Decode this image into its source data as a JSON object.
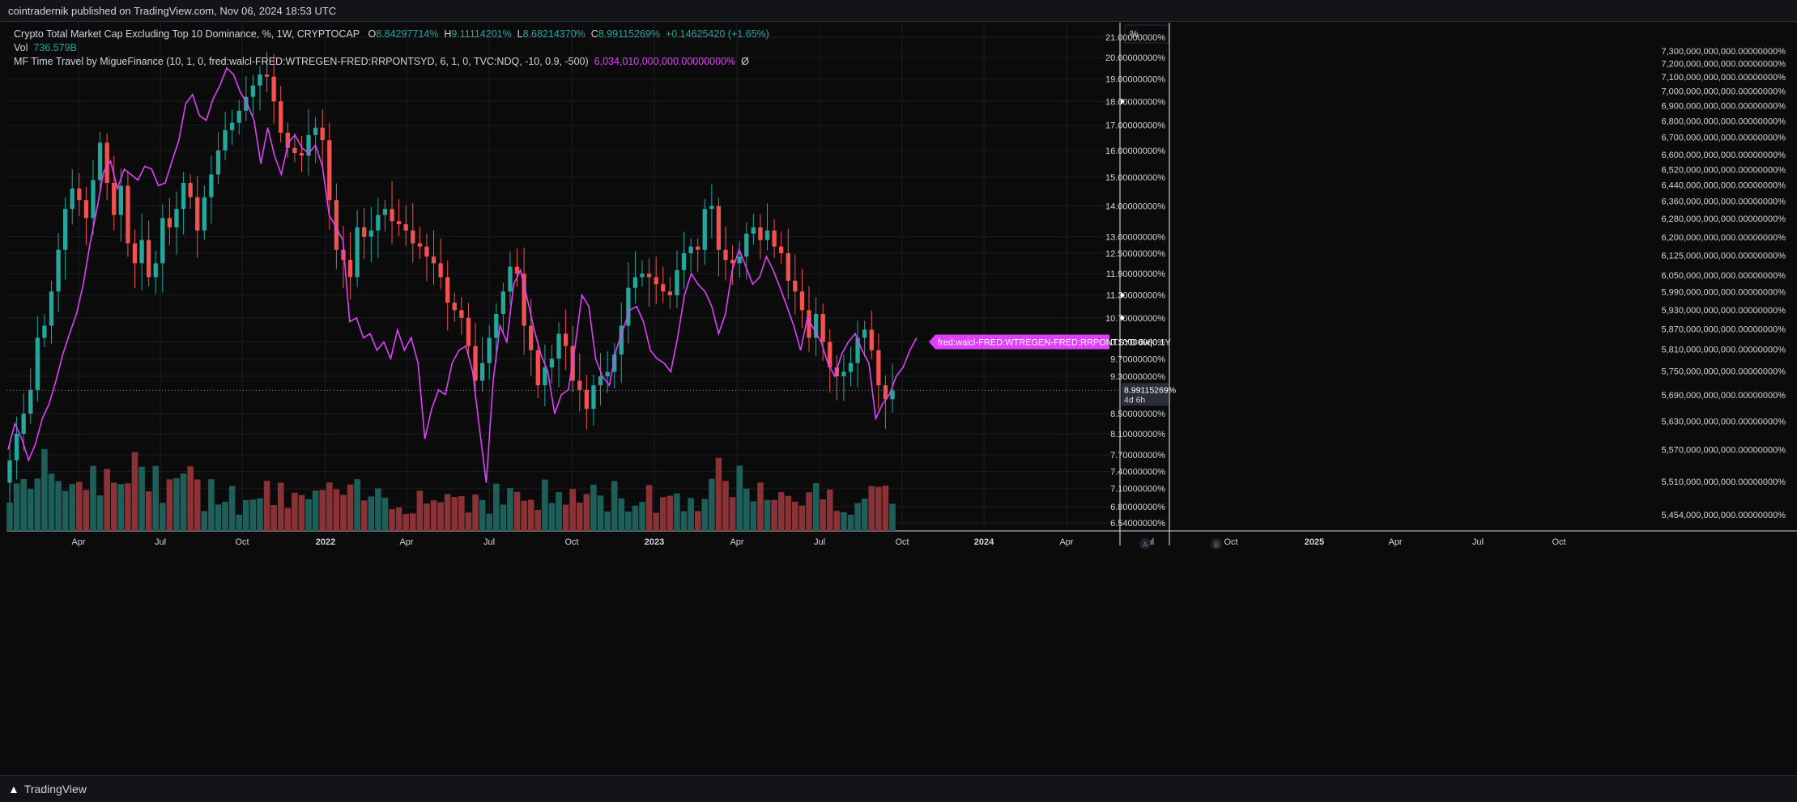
{
  "header": {
    "publisher": "cointradernik published on TradingView.com, Nov 06, 2024 18:53 UTC"
  },
  "legend": {
    "title": "Crypto Total Market Cap Excluding Top 10 Dominance, %, 1W, CRYPTOCAP",
    "o_label": "O",
    "o_value": "8.84297714%",
    "h_label": "H",
    "h_value": "9.11114201%",
    "l_label": "L",
    "l_value": "8.68214370%",
    "c_label": "C",
    "c_value": "8.99115269%",
    "change": "+0.14625420 (+1.65%)",
    "vol_label": "Vol",
    "vol_value": "736.579B",
    "indicator_name": "MF Time Travel by MigueFinance (10, 1, 0, fred:walcl-FRED:WTREGEN-FRED:RRPONTSYD, 6, 1, 0, TVC:NDQ, -10, 0.9, -500)",
    "indicator_value": "6,034,010,000,000.00000000%",
    "indicator_extra": "Ø"
  },
  "footer": {
    "brand": "TradingView"
  },
  "scale_a_unit": "%",
  "scale_a_button": "A",
  "scale_b_button": "B",
  "colors": {
    "up": "#26a69a",
    "down": "#ef5350",
    "indicator": "#e040fb",
    "vol_up": "#1f5f5a",
    "vol_down": "#8a3236",
    "background": "#0b0b0c",
    "grid": "#1a1c22"
  },
  "chart_data": {
    "type": "candlestick",
    "title": "Crypto Total Market Cap Excluding Top 10 Dominance, %, 1W, CRYPTOCAP",
    "interval": "1W",
    "y_scale": "log",
    "axis_a": {
      "unit": "%",
      "ticks": [
        "21.00000000%",
        "20.00000000%",
        "19.00000000%",
        "18.00000000%",
        "17.00000000%",
        "16.00000000%",
        "15.00000000%",
        "14.00000000%",
        "13.00000000%",
        "12.50000000%",
        "11.90000000%",
        "11.30000000%",
        "10.70000000%",
        "10.10000000%",
        "9.70000000%",
        "9.30000000%",
        "8.50000000%",
        "8.10000000%",
        "7.70000000%",
        "7.40000000%",
        "7.10000000%",
        "6.80000000%",
        "6.54000000%"
      ],
      "last_price_label": "8.99115269%",
      "countdown_label": "4d 6h"
    },
    "axis_b": {
      "ticks": [
        "7,300,000,000,000.00000000%",
        "7,200,000,000,000.00000000%",
        "7,100,000,000,000.00000000%",
        "7,000,000,000,000.00000000%",
        "6,900,000,000,000.00000000%",
        "6,800,000,000,000.00000000%",
        "6,700,000,000,000.00000000%",
        "6,600,000,000,000.00000000%",
        "6,520,000,000,000.00000000%",
        "6,440,000,000,000.00000000%",
        "6,360,000,000,000.00000000%",
        "6,280,000,000,000.00000000%",
        "6,200,000,000,000.00000000%",
        "6,125,000,000,000.00000000%",
        "6,050,000,000,000.00000000%",
        "5,990,000,000,000.00000000%",
        "5,930,000,000,000.00000000%",
        "5,870,000,000,000.00000000%",
        "5,810,000,000,000.00000000%",
        "5,750,000,000,000.00000000%",
        "5,690,000,000,000.00000000%",
        "5,630,000,000,000.00000000%",
        "5,570,000,000,000.00000000%",
        "5,510,000,000,000.00000000%",
        "5,454,000,000,000.00000000%"
      ]
    },
    "x_labels": [
      "Apr",
      "Jul",
      "Oct",
      "2022",
      "Apr",
      "Jul",
      "Oct",
      "2023",
      "Apr",
      "Jul",
      "Oct",
      "2024",
      "Apr",
      "Jul",
      "Oct",
      "2025",
      "Apr",
      "Jul",
      "Oct"
    ],
    "series": [
      {
        "name": "Crypto Total Market Cap Excluding Top 10 Dominance",
        "kind": "candlestick",
        "closes": [
          7.6,
          8.1,
          8.5,
          9.0,
          10.2,
          10.5,
          11.4,
          12.6,
          13.9,
          14.6,
          14.2,
          13.6,
          14.9,
          16.3,
          14.8,
          13.7,
          14.7,
          12.8,
          12.2,
          12.9,
          11.8,
          12.2,
          13.6,
          13.3,
          13.9,
          14.8,
          14.3,
          13.2,
          14.3,
          15.1,
          16.0,
          16.8,
          17.1,
          17.6,
          18.2,
          18.7,
          19.2,
          19.1,
          18.0,
          16.7,
          16.1,
          15.9,
          15.8,
          16.6,
          16.9,
          16.4,
          14.2,
          12.6,
          12.3,
          11.8,
          13.3,
          13.0,
          13.2,
          13.7,
          13.9,
          13.5,
          13.4,
          13.2,
          12.8,
          12.7,
          12.4,
          12.2,
          11.8,
          11.1,
          10.9,
          10.7,
          10.0,
          9.2,
          9.6,
          10.2,
          10.8,
          11.4,
          12.1,
          11.9,
          10.5,
          9.9,
          9.1,
          9.5,
          9.7,
          10.3,
          10.0,
          9.2,
          9.0,
          8.6,
          9.1,
          9.3,
          9.4,
          9.8,
          10.5,
          11.5,
          11.8,
          11.9,
          11.8,
          11.6,
          11.4,
          11.3,
          12.0,
          12.5,
          12.7,
          12.6,
          13.9,
          14.0,
          12.6,
          12.3,
          12.2,
          12.4,
          13.1,
          13.3,
          12.9,
          13.2,
          12.7,
          12.5,
          11.7,
          11.4,
          10.9,
          10.2,
          10.8,
          10.1,
          9.5,
          9.3,
          9.4,
          9.6,
          10.2,
          10.4,
          9.9,
          9.1,
          8.8,
          8.99
        ]
      },
      {
        "name": "MF Time Time Travel (fred:walcl-FRED:WTREGEN-FRED:RRPONTSYD)",
        "kind": "line",
        "label": "fred:walcl-FRED:WTREGEN-FRED:RRPONTSYD 6w|0.1Y"
      },
      {
        "name": "Vol",
        "kind": "volume"
      }
    ]
  }
}
